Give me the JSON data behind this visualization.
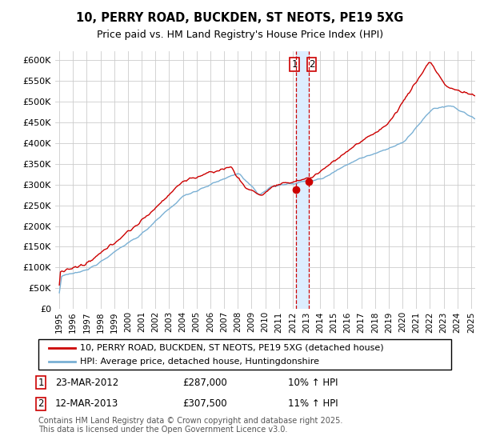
{
  "title": "10, PERRY ROAD, BUCKDEN, ST NEOTS, PE19 5XG",
  "subtitle": "Price paid vs. HM Land Registry's House Price Index (HPI)",
  "legend_line1": "10, PERRY ROAD, BUCKDEN, ST NEOTS, PE19 5XG (detached house)",
  "legend_line2": "HPI: Average price, detached house, Huntingdonshire",
  "transaction1_date": "23-MAR-2012",
  "transaction1_price": "£287,000",
  "transaction1_hpi": "10% ↑ HPI",
  "transaction2_date": "12-MAR-2013",
  "transaction2_price": "£307,500",
  "transaction2_hpi": "11% ↑ HPI",
  "footer": "Contains HM Land Registry data © Crown copyright and database right 2025.\nThis data is licensed under the Open Government Licence v3.0.",
  "red_color": "#cc0000",
  "blue_color": "#7ab0d4",
  "vline_color": "#cc0000",
  "shade_color": "#ddeeff",
  "grid_color": "#cccccc",
  "background_color": "#ffffff",
  "ylim": [
    0,
    620000
  ],
  "yticks": [
    0,
    50000,
    100000,
    150000,
    200000,
    250000,
    300000,
    350000,
    400000,
    450000,
    500000,
    550000,
    600000
  ],
  "xlim_left": 1994.7,
  "xlim_right": 2025.3,
  "transaction1_x": 2012.22,
  "transaction2_x": 2013.2,
  "transaction1_y": 287000,
  "transaction2_y": 307500
}
